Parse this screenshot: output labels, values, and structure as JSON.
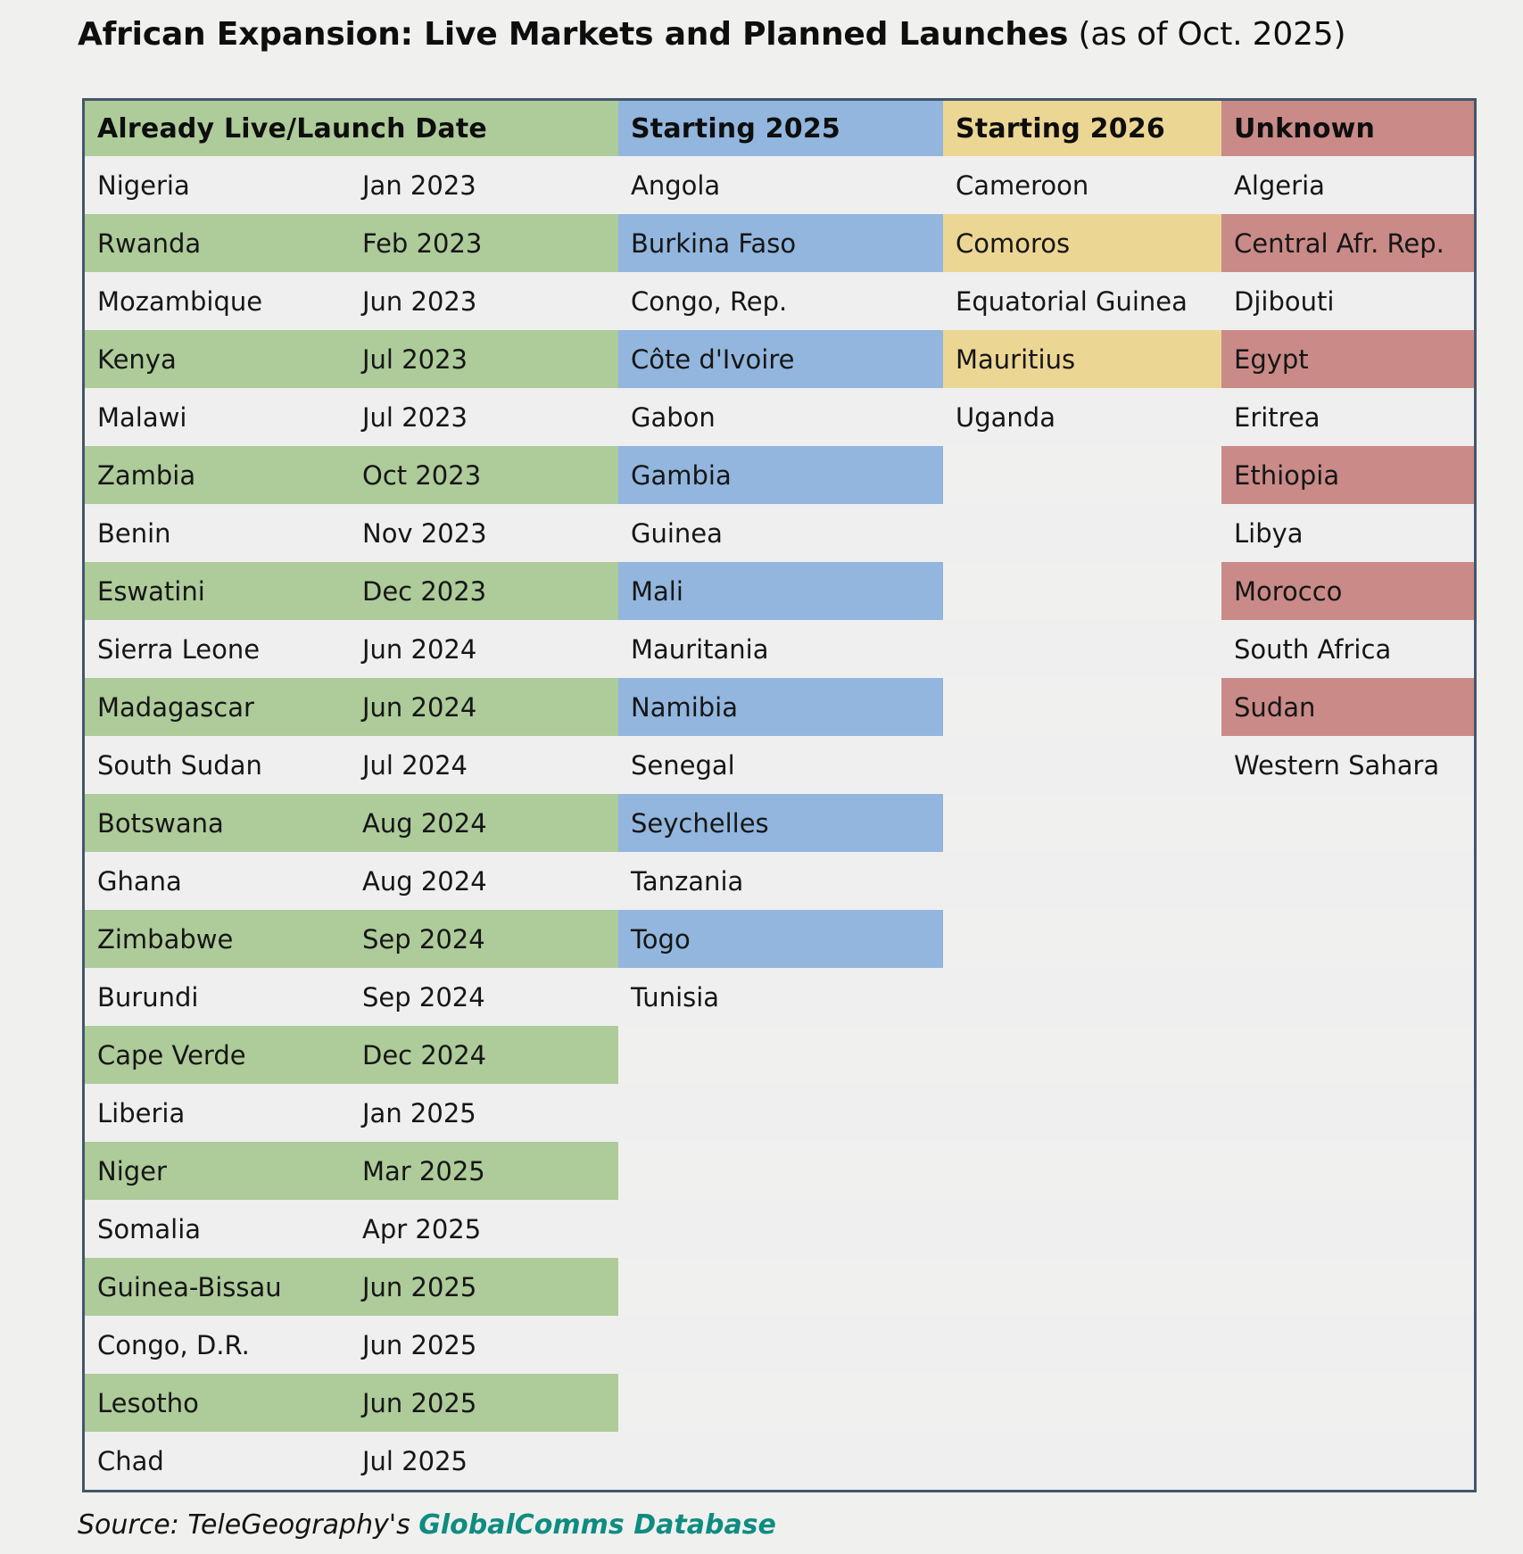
{
  "colors": {
    "page_bg": "#f0f0ee",
    "light_row": "#efefef",
    "green": "#aecb9a",
    "blue": "#92b6dd",
    "yellow": "#ecd694",
    "red": "#c98a88",
    "border": "#44566b",
    "source_link": "#0f8c81",
    "text": "#161616"
  },
  "source": {
    "prefix": "Source: TeleGeography's ",
    "link_text": "GlobalComms Database"
  },
  "chart_data": {
    "type": "table",
    "title": "African Expansion: Live Markets and Planned Launches",
    "title_suffix": " (as of Oct. 2025)",
    "columns": [
      "Already Live/Launch Date",
      "Starting 2025",
      "Starting 2026",
      "Unknown"
    ],
    "legend_colors": [
      "#aecb9a",
      "#92b6dd",
      "#ecd694",
      "#c98a88"
    ],
    "already_live": [
      {
        "country": "Nigeria",
        "launch": "Jan 2023"
      },
      {
        "country": "Rwanda",
        "launch": "Feb 2023"
      },
      {
        "country": "Mozambique",
        "launch": "Jun 2023"
      },
      {
        "country": "Kenya",
        "launch": "Jul 2023"
      },
      {
        "country": "Malawi",
        "launch": "Jul 2023"
      },
      {
        "country": "Zambia",
        "launch": "Oct 2023"
      },
      {
        "country": "Benin",
        "launch": "Nov 2023"
      },
      {
        "country": "Eswatini",
        "launch": "Dec 2023"
      },
      {
        "country": "Sierra Leone",
        "launch": "Jun 2024"
      },
      {
        "country": "Madagascar",
        "launch": "Jun 2024"
      },
      {
        "country": "South Sudan",
        "launch": "Jul 2024"
      },
      {
        "country": "Botswana",
        "launch": "Aug 2024"
      },
      {
        "country": "Ghana",
        "launch": "Aug 2024"
      },
      {
        "country": "Zimbabwe",
        "launch": "Sep 2024"
      },
      {
        "country": "Burundi",
        "launch": "Sep 2024"
      },
      {
        "country": "Cape Verde",
        "launch": "Dec 2024"
      },
      {
        "country": "Liberia",
        "launch": "Jan 2025"
      },
      {
        "country": "Niger",
        "launch": "Mar 2025"
      },
      {
        "country": "Somalia",
        "launch": "Apr 2025"
      },
      {
        "country": "Guinea-Bissau",
        "launch": "Jun 2025"
      },
      {
        "country": "Congo, D.R.",
        "launch": "Jun 2025"
      },
      {
        "country": "Lesotho",
        "launch": "Jun 2025"
      },
      {
        "country": "Chad",
        "launch": "Jul 2025"
      }
    ],
    "starting_2025": [
      "Angola",
      "Burkina Faso",
      "Congo, Rep.",
      "Côte d'Ivoire",
      "Gabon",
      "Gambia",
      "Guinea",
      "Mali",
      "Mauritania",
      "Namibia",
      "Senegal",
      "Seychelles",
      "Tanzania",
      "Togo",
      "Tunisia"
    ],
    "starting_2026": [
      "Cameroon",
      "Comoros",
      "Equatorial Guinea",
      "Mauritius",
      "Uganda"
    ],
    "unknown": [
      "Algeria",
      "Central Afr. Rep.",
      "Djibouti",
      "Egypt",
      "Eritrea",
      "Ethiopia",
      "Libya",
      "Morocco",
      "South Africa",
      "Sudan",
      "Western Sahara"
    ]
  }
}
